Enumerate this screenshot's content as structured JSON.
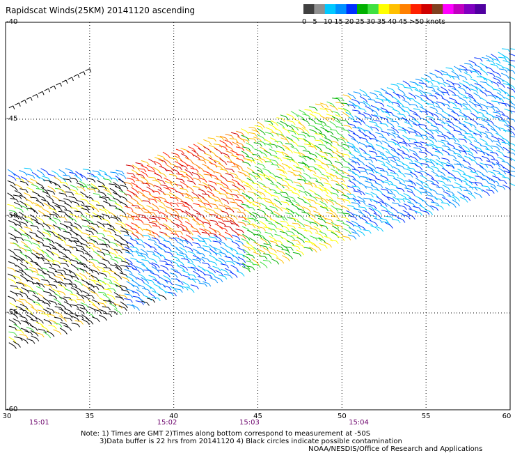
{
  "chart_data": {
    "type": "scatter",
    "title": "Rapidscat Winds(25KM) 20141120 ascending",
    "xlim": [
      30,
      60
    ],
    "ylim": [
      -60,
      -40
    ],
    "x_ticks": [
      {
        "value": 30,
        "label": "30"
      },
      {
        "value": 35,
        "label": "35"
      },
      {
        "value": 40,
        "label": "40"
      },
      {
        "value": 45,
        "label": "45"
      },
      {
        "value": 50,
        "label": "50"
      },
      {
        "value": 55,
        "label": "55"
      },
      {
        "value": 60,
        "label": "60"
      }
    ],
    "y_ticks": [
      {
        "value": -40,
        "label": "-40"
      },
      {
        "value": -45,
        "label": "-45"
      },
      {
        "value": -50,
        "label": "-50"
      },
      {
        "value": -55,
        "label": "-55"
      },
      {
        "value": -60,
        "label": "-60"
      }
    ],
    "time_ticks": [
      {
        "x": 32.0,
        "label": "15:01"
      },
      {
        "x": 39.6,
        "label": "15:02"
      },
      {
        "x": 44.5,
        "label": "15:03"
      },
      {
        "x": 51.0,
        "label": "15:04"
      }
    ],
    "grid": true,
    "colorbar": {
      "colors": [
        "#404040",
        "#909090",
        "#00c8ff",
        "#0090ff",
        "#0030ff",
        "#00b000",
        "#40e040",
        "#ffff00",
        "#ffc000",
        "#ff8000",
        "#ff2000",
        "#d00000",
        "#804020",
        "#ff00ff",
        "#c000c0",
        "#8000c0",
        "#5000a0"
      ],
      "labels": [
        {
          "value": "0",
          "index": 0
        },
        {
          "value": "5",
          "index": 2
        },
        {
          "value": "10",
          "index": 4
        },
        {
          "value": "15",
          "index": 6
        },
        {
          "value": "20",
          "index": 8
        },
        {
          "value": "25",
          "index": 10
        },
        {
          "value": "30",
          "index": 12
        },
        {
          "value": "35",
          "index": 14
        },
        {
          "value": "40",
          "index": 16
        },
        {
          "value": "45",
          "index": 18
        },
        {
          "value": ">50 knots",
          "index": 20
        }
      ]
    },
    "swath": {
      "description_regions": [
        {
          "lon": [
            37,
            44
          ],
          "lat": [
            -48,
            -51
          ],
          "speed": "25-30"
        },
        {
          "lon": [
            44,
            50
          ],
          "lat": [
            -47,
            -53
          ],
          "speed": "15-25"
        },
        {
          "lon": [
            50,
            60
          ],
          "lat": [
            -44,
            -55
          ],
          "speed": "5-15"
        },
        {
          "lon": [
            30,
            37
          ],
          "lat": [
            -48,
            -56
          ],
          "speed": "0-20"
        }
      ]
    },
    "notes": [
      "Note: 1) Times are GMT 2)Times along bottom correspond to measurement at -50S",
      "3)Data buffer is 22 hrs from 20141120 4) Black circles indicate possible contamination",
      "NOAA/NESDIS/Office of Research and Applications"
    ]
  }
}
